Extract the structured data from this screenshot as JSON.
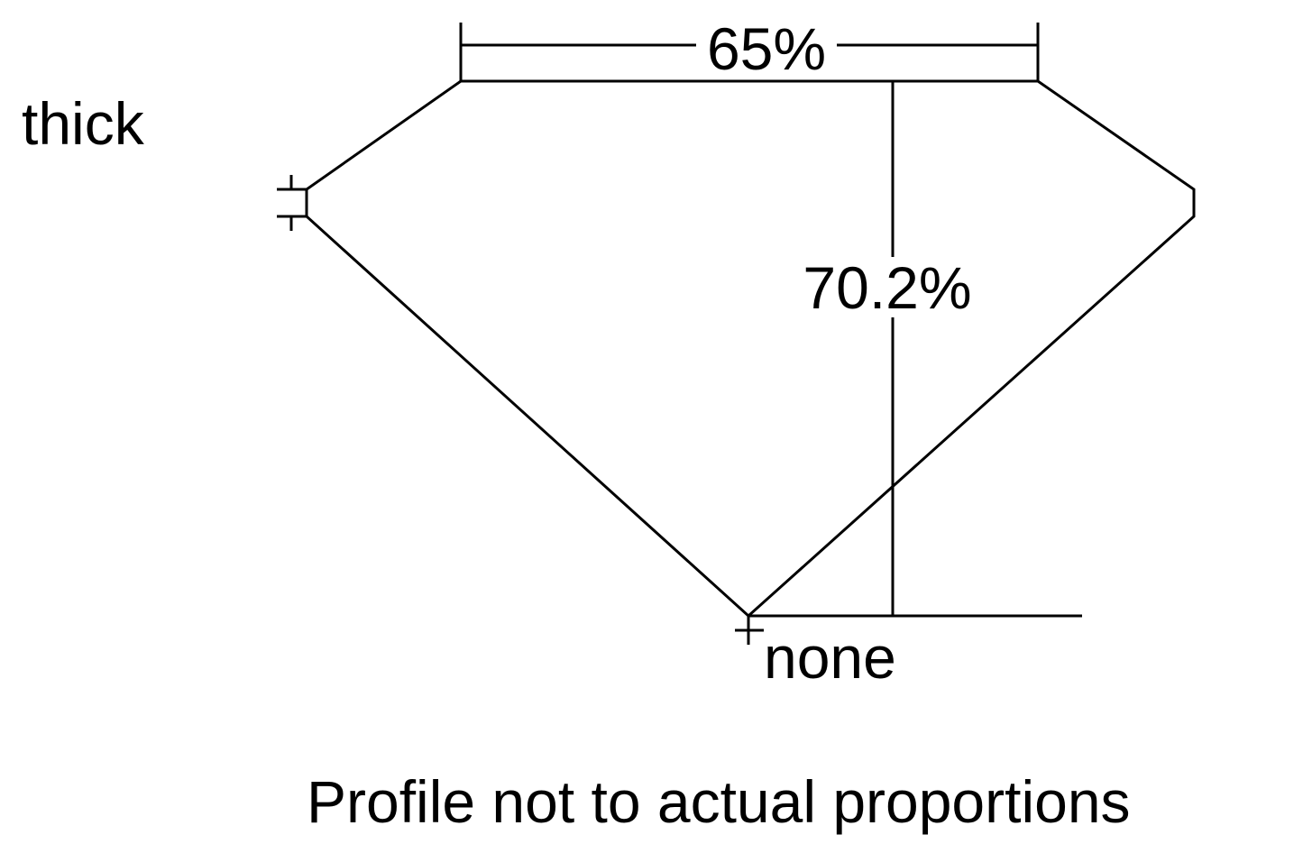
{
  "diagram": {
    "table_percent": "65%",
    "depth_percent": "70.2%",
    "girdle": "thick",
    "culet": "none",
    "note": "Profile not to actual proportions",
    "line_color": "#000000",
    "background_color": "#ffffff"
  }
}
